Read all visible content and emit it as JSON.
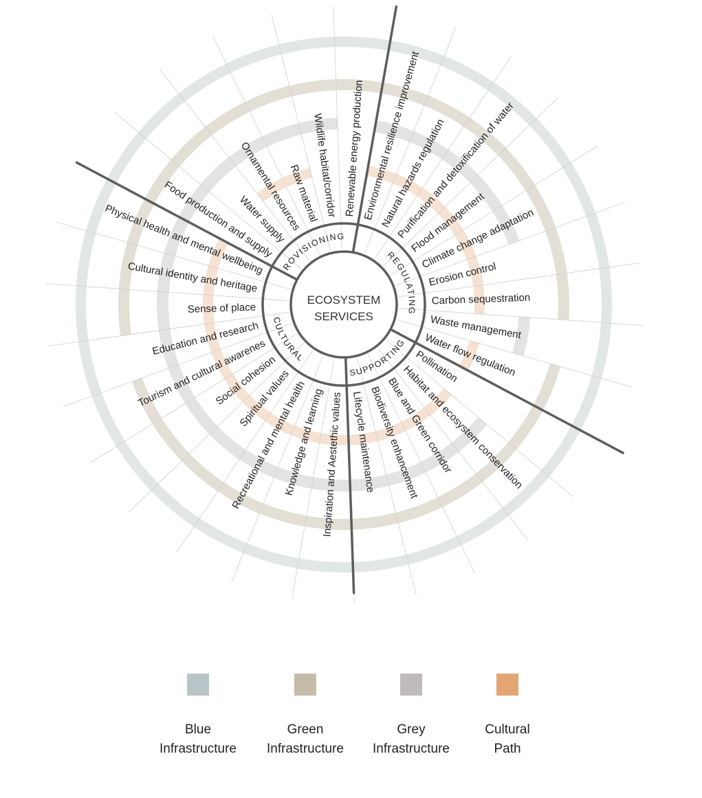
{
  "center": {
    "line1": "ECOSYSTEM",
    "line2": "SERVICES"
  },
  "colors": {
    "blue": "#bcc4c6",
    "green": "#c5bca8",
    "grey": "#bfbbbb",
    "cultural": "#e3a673",
    "spoke": "#5d5d5d",
    "fine_line": "#cfcfcf"
  },
  "categories": [
    {
      "name": "PROVISIONING"
    },
    {
      "name": "REGULATING"
    },
    {
      "name": "SUPPORTING"
    },
    {
      "name": "CULTURAL"
    }
  ],
  "services": [
    {
      "label": "Renewable energy production",
      "category": "PROVISIONING",
      "rings": [
        "green",
        "blue"
      ]
    },
    {
      "label": "Environmental resilience improvement",
      "category": "REGULATING",
      "rings": [
        "cultural",
        "grey",
        "green",
        "blue"
      ]
    },
    {
      "label": "Natural hazards regulation",
      "category": "REGULATING",
      "rings": [
        "cultural",
        "grey",
        "green",
        "blue"
      ]
    },
    {
      "label": "Purification and detoxification of water",
      "category": "REGULATING",
      "rings": [
        "cultural",
        "grey",
        "green",
        "blue"
      ]
    },
    {
      "label": "Flood management",
      "category": "REGULATING",
      "rings": [
        "cultural",
        "grey",
        "green",
        "blue"
      ]
    },
    {
      "label": "Climate  change adaptation",
      "category": "REGULATING",
      "rings": [
        "cultural",
        "grey",
        "green",
        "blue"
      ]
    },
    {
      "label": "Erosion control",
      "category": "REGULATING",
      "rings": [
        "cultural",
        "green",
        "blue"
      ]
    },
    {
      "label": "Carbon sequestration",
      "category": "REGULATING",
      "rings": [
        "cultural",
        "green",
        "blue"
      ]
    },
    {
      "label": "Waste management",
      "category": "REGULATING",
      "rings": [
        "grey",
        "blue"
      ]
    },
    {
      "label": "Water flow regulation",
      "category": "REGULATING",
      "rings": [
        "cultural",
        "green",
        "blue"
      ]
    },
    {
      "label": "Pollination",
      "category": "SUPPORTING",
      "rings": [
        "green",
        "blue"
      ]
    },
    {
      "label": "Habitat and ecosystem conservation",
      "category": "SUPPORTING",
      "rings": [
        "cultural",
        "grey",
        "green",
        "blue"
      ]
    },
    {
      "label": "Blue and Green corridor",
      "category": "SUPPORTING",
      "rings": [
        "cultural",
        "grey",
        "green",
        "blue"
      ]
    },
    {
      "label": "Biodiversity enhancement",
      "category": "SUPPORTING",
      "rings": [
        "cultural",
        "grey",
        "green",
        "blue"
      ]
    },
    {
      "label": "Lifecycle maintenance",
      "category": "SUPPORTING",
      "rings": [
        "cultural",
        "grey",
        "green",
        "blue"
      ]
    },
    {
      "label": "Inspiration and Aestethic values",
      "category": "CULTURAL",
      "rings": [
        "cultural",
        "grey",
        "green",
        "blue"
      ]
    },
    {
      "label": "Knowledge and learning",
      "category": "CULTURAL",
      "rings": [
        "cultural",
        "grey",
        "green",
        "blue"
      ]
    },
    {
      "label": "Recreational and mental health",
      "category": "CULTURAL",
      "rings": [
        "cultural",
        "grey",
        "green",
        "blue"
      ]
    },
    {
      "label": "Spiritual values",
      "category": "CULTURAL",
      "rings": [
        "cultural",
        "grey",
        "green",
        "blue"
      ]
    },
    {
      "label": "Social cohesion",
      "category": "CULTURAL",
      "rings": [
        "cultural",
        "grey",
        "green",
        "blue"
      ]
    },
    {
      "label": "Tourism and cultural awarenes",
      "category": "CULTURAL",
      "rings": [
        "cultural",
        "grey",
        "green",
        "blue"
      ]
    },
    {
      "label": "Education and research",
      "category": "CULTURAL",
      "rings": [
        "cultural",
        "grey",
        "blue"
      ]
    },
    {
      "label": "Sense of place",
      "category": "CULTURAL",
      "rings": [
        "cultural",
        "grey",
        "green",
        "blue"
      ]
    },
    {
      "label": "Cultural identity and heritage",
      "category": "CULTURAL",
      "rings": [
        "cultural",
        "grey",
        "green",
        "blue"
      ]
    },
    {
      "label": "Physical health and mental wellbeing",
      "category": "CULTURAL",
      "rings": [
        "cultural",
        "grey",
        "green",
        "blue"
      ]
    },
    {
      "label": "Food production and supply",
      "category": "PROVISIONING",
      "rings": [
        "grey",
        "green",
        "blue"
      ]
    },
    {
      "label": "Water supply",
      "category": "PROVISIONING",
      "rings": [
        "grey",
        "green",
        "blue"
      ]
    },
    {
      "label": "Ornamental resources",
      "category": "PROVISIONING",
      "rings": [
        "cultural",
        "grey",
        "green",
        "blue"
      ]
    },
    {
      "label": "Raw material",
      "category": "PROVISIONING",
      "rings": [
        "cultural",
        "grey",
        "green",
        "blue"
      ]
    },
    {
      "label": "Wildlife habitat/corridor",
      "category": "PROVISIONING",
      "rings": [
        "grey",
        "green",
        "blue"
      ]
    }
  ],
  "legend": [
    {
      "key": "blue",
      "line1": "Blue",
      "line2": "Infrastructure"
    },
    {
      "key": "green",
      "line1": "Green",
      "line2": "Infrastructure"
    },
    {
      "key": "grey",
      "line1": "Grey",
      "line2": "Infrastructure"
    },
    {
      "key": "cultural",
      "line1": "Cultural",
      "line2": "Path"
    }
  ]
}
